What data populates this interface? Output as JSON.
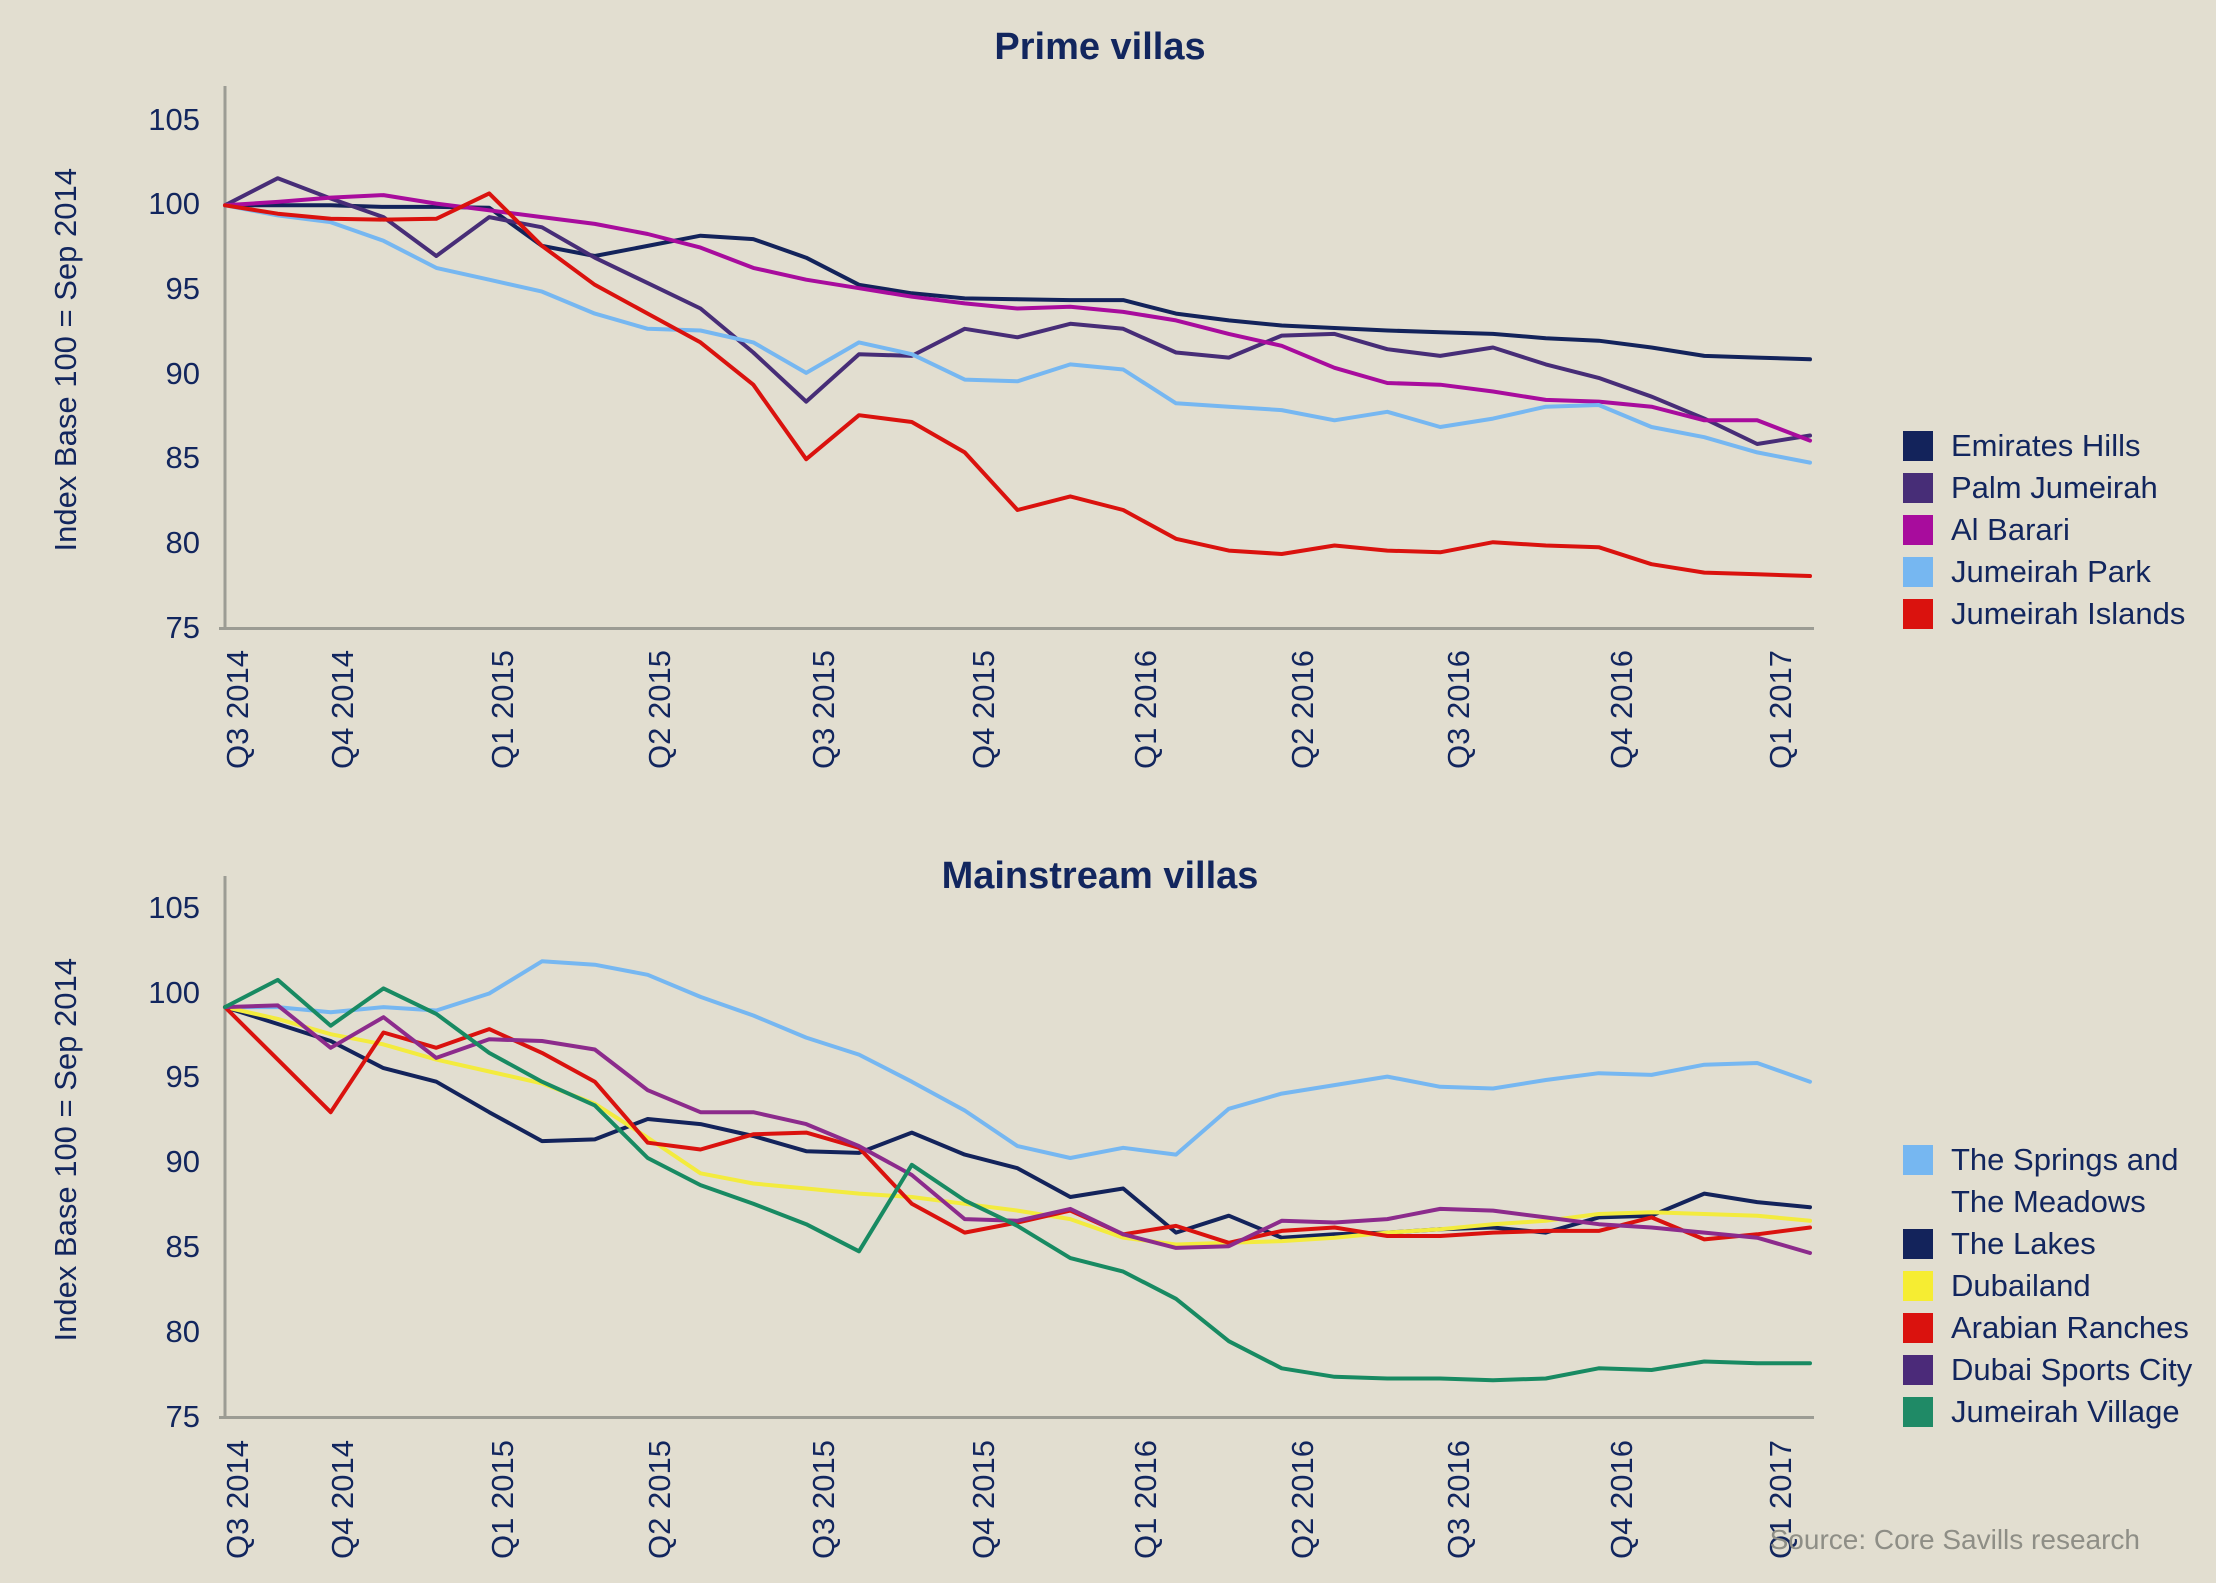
{
  "source_note": "Source: Core Savills research",
  "palette": {
    "background": "#e2ded0",
    "text_navy": "#12265e",
    "axis_gray": "#9c9c94",
    "source_gray": "#8e8e86"
  },
  "chart_data": [
    {
      "type": "line",
      "title": "Prime villas",
      "ylabel": "Index Base 100 = Sep 2014",
      "ylim": [
        75,
        105
      ],
      "yticks": [
        105,
        100,
        95,
        90,
        85,
        80,
        75
      ],
      "grid": false,
      "legend_position": "right",
      "x_tick_labels": [
        "Q3 2014",
        "Q4 2014",
        "Q1 2015",
        "Q2 2015",
        "Q3 2015",
        "Q4 2015",
        "Q1 2016",
        "Q2 2016",
        "Q3 2016",
        "Q4 2016",
        "Q1 2017"
      ],
      "x_description": "monthly index points, Sep 2014 to Mar 2017",
      "series": [
        {
          "name": "Emirates Hills",
          "color": "#13235b",
          "values": [
            100,
            100,
            100,
            99.9,
            99.9,
            99.85,
            97.6,
            97.0,
            97.6,
            98.2,
            98.0,
            96.9,
            95.3,
            94.8,
            94.5,
            94.45,
            94.4,
            94.4,
            93.6,
            93.2,
            92.9,
            92.75,
            92.6,
            92.5,
            92.4,
            92.15,
            92.0,
            91.6,
            91.1,
            91.0,
            90.9
          ]
        },
        {
          "name": "Palm Jumeirah",
          "color": "#472d77",
          "values": [
            100,
            101.6,
            100.4,
            99.3,
            97.0,
            99.3,
            98.7,
            96.9,
            95.4,
            93.9,
            91.3,
            88.4,
            91.2,
            91.1,
            92.7,
            92.2,
            93.0,
            92.7,
            91.3,
            91.0,
            92.3,
            92.4,
            91.5,
            91.1,
            91.6,
            90.6,
            89.8,
            88.7,
            87.4,
            85.9,
            86.4
          ]
        },
        {
          "name": "Al Barari",
          "color": "#a80c9d",
          "values": [
            100,
            100.2,
            100.45,
            100.6,
            100.1,
            99.7,
            99.3,
            98.9,
            98.3,
            97.5,
            96.3,
            95.6,
            95.1,
            94.6,
            94.2,
            93.9,
            94.0,
            93.7,
            93.2,
            92.4,
            91.7,
            90.4,
            89.5,
            89.4,
            89.0,
            88.5,
            88.4,
            88.1,
            87.3,
            87.3,
            86.1
          ]
        },
        {
          "name": "Jumeirah Park",
          "color": "#76b7f1",
          "values": [
            100,
            99.4,
            99.0,
            97.9,
            96.3,
            95.6,
            94.9,
            93.6,
            92.7,
            92.6,
            91.9,
            90.1,
            91.9,
            91.2,
            89.7,
            89.6,
            90.6,
            90.3,
            88.3,
            88.1,
            87.9,
            87.3,
            87.8,
            86.9,
            87.4,
            88.1,
            88.2,
            86.9,
            86.3,
            85.4,
            84.8
          ]
        },
        {
          "name": "Jumeirah Islands",
          "color": "#da120e",
          "values": [
            100,
            99.5,
            99.2,
            99.15,
            99.2,
            100.7,
            97.6,
            95.3,
            93.6,
            91.9,
            89.4,
            85.0,
            87.6,
            87.2,
            85.4,
            82.0,
            82.8,
            82.0,
            80.3,
            79.6,
            79.4,
            79.9,
            79.6,
            79.5,
            80.1,
            79.9,
            79.8,
            78.8,
            78.3,
            78.2,
            78.1
          ]
        }
      ]
    },
    {
      "type": "line",
      "title": "Mainstream villas",
      "ylabel": "Index Base 100 = Sep 2014",
      "ylim": [
        75,
        105
      ],
      "yticks": [
        105,
        100,
        95,
        90,
        85,
        80,
        75
      ],
      "grid": false,
      "legend_position": "right",
      "x_tick_labels": [
        "Q3 2014",
        "Q4 2014",
        "Q1 2015",
        "Q2 2015",
        "Q3 2015",
        "Q4 2015",
        "Q1 2016",
        "Q2 2016",
        "Q3 2016",
        "Q4 2016",
        "Q1 2017"
      ],
      "x_description": "monthly index points, Sep 2014 to Mar 2017",
      "series": [
        {
          "name": "The Springs and The Meadows",
          "legend_lines": [
            "The Springs and",
            "The Meadows"
          ],
          "color": "#76b7f1",
          "values": [
            99.2,
            99.2,
            98.9,
            99.2,
            99.0,
            100.0,
            101.9,
            101.7,
            101.1,
            99.8,
            98.7,
            97.4,
            96.4,
            94.8,
            93.1,
            91.0,
            90.3,
            90.9,
            90.5,
            93.2,
            94.1,
            94.6,
            95.1,
            94.5,
            94.4,
            94.9,
            95.3,
            95.2,
            95.8,
            95.9,
            94.8
          ]
        },
        {
          "name": "The Lakes",
          "color": "#13235b",
          "values": [
            99.2,
            98.2,
            97.2,
            95.6,
            94.8,
            93.0,
            91.3,
            91.4,
            92.6,
            92.3,
            91.6,
            90.7,
            90.6,
            91.8,
            90.5,
            89.7,
            88.0,
            88.5,
            85.9,
            86.9,
            85.6,
            85.8,
            85.9,
            86.1,
            86.2,
            85.9,
            86.8,
            86.9,
            88.2,
            87.7,
            87.4
          ]
        },
        {
          "name": "Dubailand",
          "color": "#f3eb3e",
          "swatch": "#f6ed32",
          "values": [
            99.2,
            98.5,
            97.6,
            97.0,
            96.1,
            95.4,
            94.7,
            93.5,
            91.5,
            89.4,
            88.8,
            88.5,
            88.2,
            88.0,
            87.6,
            87.2,
            86.7,
            85.6,
            85.2,
            85.3,
            85.4,
            85.6,
            85.9,
            86.1,
            86.4,
            86.6,
            87.0,
            87.1,
            87.0,
            86.9,
            86.6
          ]
        },
        {
          "name": "Arabian Ranches",
          "color": "#da120e",
          "values": [
            99.2,
            96.1,
            93.0,
            97.7,
            96.8,
            97.9,
            96.5,
            94.8,
            91.2,
            90.8,
            91.7,
            91.8,
            90.9,
            87.6,
            85.9,
            86.5,
            87.2,
            85.8,
            86.3,
            85.3,
            86.0,
            86.2,
            85.7,
            85.7,
            85.9,
            86.0,
            86.0,
            86.8,
            85.5,
            85.8,
            86.2
          ]
        },
        {
          "name": "Dubai Sports City",
          "color": "#8c2b8c",
          "swatch": "#4b2a79",
          "values": [
            99.2,
            99.3,
            96.8,
            98.6,
            96.2,
            97.3,
            97.2,
            96.7,
            94.3,
            93.0,
            93.0,
            92.3,
            91.0,
            89.3,
            86.7,
            86.6,
            87.3,
            85.8,
            85.0,
            85.1,
            86.6,
            86.5,
            86.7,
            87.3,
            87.2,
            86.8,
            86.4,
            86.2,
            85.9,
            85.6,
            84.7
          ]
        },
        {
          "name": "Jumeirah Village",
          "color": "#188a62",
          "swatch": "#1f8a66",
          "values": [
            99.2,
            100.8,
            98.1,
            100.3,
            98.8,
            96.5,
            94.8,
            93.4,
            90.3,
            88.7,
            87.6,
            86.4,
            84.8,
            89.9,
            87.8,
            86.3,
            84.4,
            83.6,
            82.0,
            79.5,
            77.9,
            77.4,
            77.3,
            77.3,
            77.2,
            77.3,
            77.9,
            77.8,
            78.3,
            78.2,
            78.2
          ]
        }
      ]
    }
  ]
}
